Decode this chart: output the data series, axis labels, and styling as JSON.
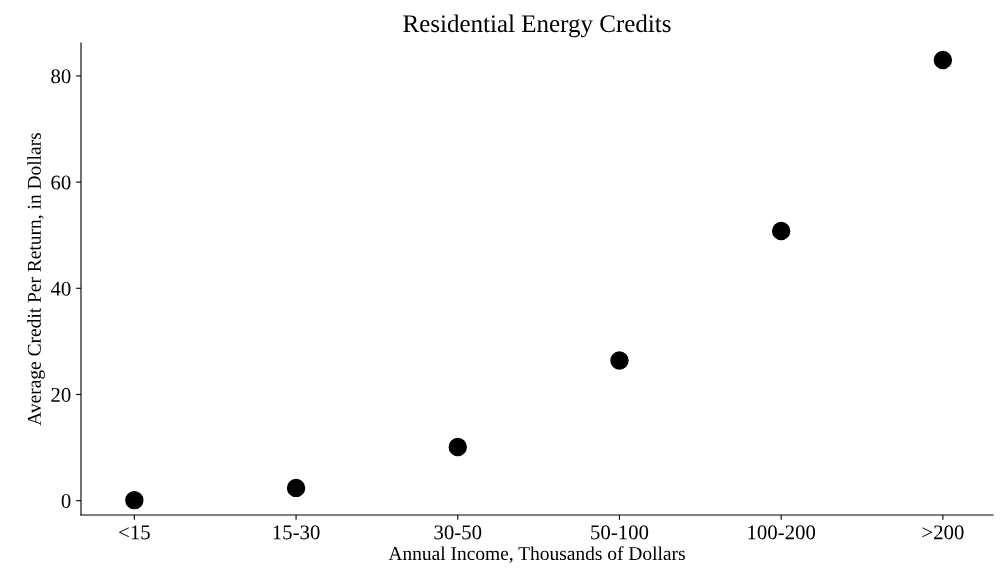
{
  "chart_data": {
    "type": "scatter",
    "title": "Residential Energy Credits",
    "xlabel": "Annual Income, Thousands of Dollars",
    "ylabel": "Average Credit Per Return, in Dollars",
    "categories": [
      "<15",
      "15-30",
      "30-50",
      "50-100",
      "100-200",
      ">200"
    ],
    "series": [
      {
        "color": "#000000",
        "values": [
          0.1,
          2.4,
          10.1,
          26.4,
          50.8,
          83.0
        ]
      }
    ],
    "ylim": [
      -2.7,
      86.2
    ],
    "yticks": [
      0,
      20,
      40,
      60,
      80
    ],
    "grid": false,
    "marker": "circle"
  }
}
